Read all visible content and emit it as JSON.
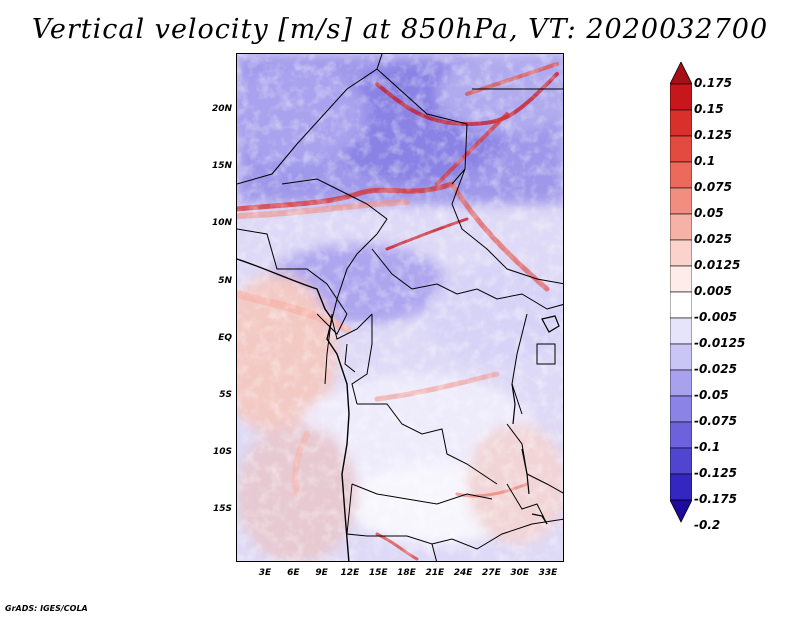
{
  "title": "Vertical velocity [m/s] at 850hPa, VT: 2020032700",
  "credit": "GrADS: IGES/COLA",
  "map": {
    "lon_range": [
      0,
      35
    ],
    "lat_range": [
      -20,
      25
    ],
    "y_ticks": [
      "20N",
      "15N",
      "10N",
      "5N",
      "EQ",
      "5S",
      "10S",
      "15S"
    ],
    "x_ticks": [
      "3E",
      "6E",
      "9E",
      "12E",
      "15E",
      "18E",
      "21E",
      "24E",
      "27E",
      "30E",
      "33E"
    ],
    "field_description": "Vertical velocity at 850hPa over central Africa"
  },
  "colorbar": {
    "labels": [
      "0.175",
      "0.15",
      "0.125",
      "0.1",
      "0.075",
      "0.05",
      "0.025",
      "0.0125",
      "0.005",
      "-0.005",
      "-0.0125",
      "-0.025",
      "-0.05",
      "-0.075",
      "-0.1",
      "-0.125",
      "-0.175",
      "-0.2"
    ],
    "colors": [
      "#a50f15",
      "#c8161d",
      "#d9302c",
      "#e34a40",
      "#ec6a5c",
      "#f28e80",
      "#f7b2a7",
      "#fbd3cc",
      "#fdecea",
      "#ffffff",
      "#e6e4fb",
      "#c9c5f5",
      "#a7a1ee",
      "#8b83e6",
      "#6c63dc",
      "#4f45cf",
      "#3426c0",
      "#1e0a9e"
    ]
  }
}
